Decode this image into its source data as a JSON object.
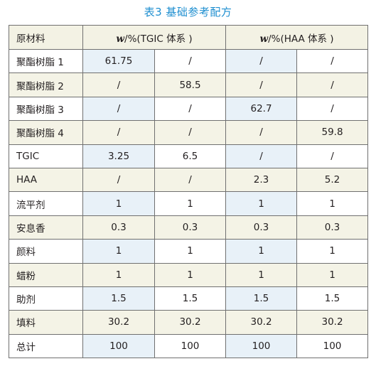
{
  "caption": "表3 基础参考配方",
  "table": {
    "header": {
      "material": "原材料",
      "tgic_w": "w",
      "tgic_rest": "/%(TGIC 体系 )",
      "haa_w": "w",
      "haa_rest": "/%(HAA 体系 )"
    },
    "rows": [
      {
        "name": "聚酯树脂 1",
        "v1": "61.75",
        "v2": "/",
        "v3": "/",
        "v4": "/"
      },
      {
        "name": "聚酯树脂 2",
        "v1": "/",
        "v2": "58.5",
        "v3": "/",
        "v4": "/"
      },
      {
        "name": "聚酯树脂 3",
        "v1": "/",
        "v2": "/",
        "v3": "62.7",
        "v4": "/"
      },
      {
        "name": "聚酯树脂 4",
        "v1": "/",
        "v2": "/",
        "v3": "/",
        "v4": "59.8"
      },
      {
        "name": "TGIC",
        "v1": "3.25",
        "v2": "6.5",
        "v3": "/",
        "v4": "/"
      },
      {
        "name": "HAA",
        "v1": "/",
        "v2": "/",
        "v3": "2.3",
        "v4": "5.2"
      },
      {
        "name": "流平剂",
        "v1": "1",
        "v2": "1",
        "v3": "1",
        "v4": "1"
      },
      {
        "name": "安息香",
        "v1": "0.3",
        "v2": "0.3",
        "v3": "0.3",
        "v4": "0.3"
      },
      {
        "name": "颜料",
        "v1": "1",
        "v2": "1",
        "v3": "1",
        "v4": "1"
      },
      {
        "name": "蜡粉",
        "v1": "1",
        "v2": "1",
        "v3": "1",
        "v4": "1"
      },
      {
        "name": "助剂",
        "v1": "1.5",
        "v2": "1.5",
        "v3": "1.5",
        "v4": "1.5"
      },
      {
        "name": "填料",
        "v1": "30.2",
        "v2": "30.2",
        "v3": "30.2",
        "v4": "30.2"
      },
      {
        "name": "总计",
        "v1": "100",
        "v2": "100",
        "v3": "100",
        "v4": "100"
      }
    ]
  },
  "colors": {
    "caption": "#1f8fd0",
    "stripe_beige": "#f4f3e6",
    "stripe_blue": "#e8f1f8",
    "border": "#707070"
  }
}
